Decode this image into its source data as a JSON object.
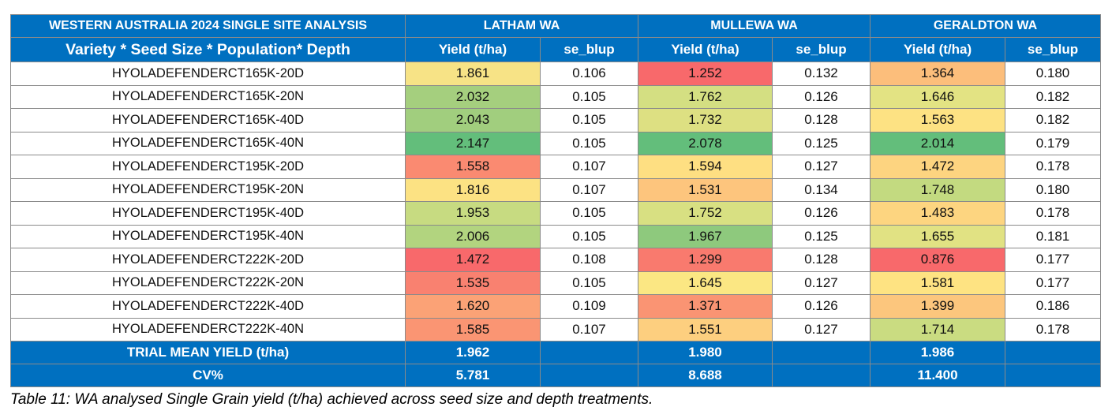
{
  "table": {
    "title": "WESTERN AUSTRALIA 2024 SINGLE SITE ANALYSIS",
    "subtitle": "Variety * Seed Size * Population* Depth",
    "sites": [
      "LATHAM WA",
      "MULLEWA WA",
      "GERALDTON WA"
    ],
    "col_yield": "Yield (t/ha)",
    "col_se": "se_blup",
    "rows": [
      {
        "variety": "HYOLADEFENDERCT165K-20D",
        "cells": [
          {
            "yield": "1.861",
            "se": "0.106",
            "color": "#f7e386"
          },
          {
            "yield": "1.252",
            "se": "0.132",
            "color": "#f8696b"
          },
          {
            "yield": "1.364",
            "se": "0.180",
            "color": "#fcbe7b"
          }
        ]
      },
      {
        "variety": "HYOLADEFENDERCT165K-20N",
        "cells": [
          {
            "yield": "2.032",
            "se": "0.105",
            "color": "#a5cf7e"
          },
          {
            "yield": "1.762",
            "se": "0.126",
            "color": "#d4df82"
          },
          {
            "yield": "1.646",
            "se": "0.182",
            "color": "#e3e383"
          }
        ]
      },
      {
        "variety": "HYOLADEFENDERCT165K-40D",
        "cells": [
          {
            "yield": "2.043",
            "se": "0.105",
            "color": "#a1ce7e"
          },
          {
            "yield": "1.732",
            "se": "0.128",
            "color": "#dde082"
          },
          {
            "yield": "1.563",
            "se": "0.182",
            "color": "#fde283"
          }
        ]
      },
      {
        "variety": "HYOLADEFENDERCT165K-40N",
        "cells": [
          {
            "yield": "2.147",
            "se": "0.105",
            "color": "#63be7b"
          },
          {
            "yield": "2.078",
            "se": "0.125",
            "color": "#63be7b"
          },
          {
            "yield": "2.014",
            "se": "0.179",
            "color": "#63be7b"
          }
        ]
      },
      {
        "variety": "HYOLADEFENDERCT195K-20D",
        "cells": [
          {
            "yield": "1.558",
            "se": "0.107",
            "color": "#fa8a71"
          },
          {
            "yield": "1.594",
            "se": "0.127",
            "color": "#fedf82"
          },
          {
            "yield": "1.472",
            "se": "0.178",
            "color": "#fdd480"
          }
        ]
      },
      {
        "variety": "HYOLADEFENDERCT195K-20N",
        "cells": [
          {
            "yield": "1.816",
            "se": "0.107",
            "color": "#fce283"
          },
          {
            "yield": "1.531",
            "se": "0.134",
            "color": "#fdc57d"
          },
          {
            "yield": "1.748",
            "se": "0.180",
            "color": "#c3da80"
          }
        ]
      },
      {
        "variety": "HYOLADEFENDERCT195K-40D",
        "cells": [
          {
            "yield": "1.953",
            "se": "0.105",
            "color": "#c7db81"
          },
          {
            "yield": "1.752",
            "se": "0.126",
            "color": "#d8e082"
          },
          {
            "yield": "1.483",
            "se": "0.178",
            "color": "#fdd580"
          }
        ]
      },
      {
        "variety": "HYOLADEFENDERCT195K-40N",
        "cells": [
          {
            "yield": "2.006",
            "se": "0.105",
            "color": "#b2d47f"
          },
          {
            "yield": "1.967",
            "se": "0.125",
            "color": "#8ec97d"
          },
          {
            "yield": "1.655",
            "se": "0.181",
            "color": "#e1e283"
          }
        ]
      },
      {
        "variety": "HYOLADEFENDERCT222K-20D",
        "cells": [
          {
            "yield": "1.472",
            "se": "0.108",
            "color": "#f8696b"
          },
          {
            "yield": "1.299",
            "se": "0.128",
            "color": "#f97a6e"
          },
          {
            "yield": "0.876",
            "se": "0.177",
            "color": "#f8696b"
          }
        ]
      },
      {
        "variety": "HYOLADEFENDERCT222K-20N",
        "cells": [
          {
            "yield": "1.535",
            "se": "0.105",
            "color": "#f98170"
          },
          {
            "yield": "1.645",
            "se": "0.127",
            "color": "#fbe783"
          },
          {
            "yield": "1.581",
            "se": "0.177",
            "color": "#fee382"
          }
        ]
      },
      {
        "variety": "HYOLADEFENDERCT222K-40D",
        "cells": [
          {
            "yield": "1.620",
            "se": "0.109",
            "color": "#fba276"
          },
          {
            "yield": "1.371",
            "se": "0.126",
            "color": "#fa9473"
          },
          {
            "yield": "1.399",
            "se": "0.186",
            "color": "#fcc67d"
          }
        ]
      },
      {
        "variety": "HYOLADEFENDERCT222K-40N",
        "cells": [
          {
            "yield": "1.585",
            "se": "0.107",
            "color": "#fa9573"
          },
          {
            "yield": "1.551",
            "se": "0.127",
            "color": "#fdcf7f"
          },
          {
            "yield": "1.714",
            "se": "0.178",
            "color": "#cadc81"
          }
        ]
      }
    ],
    "footer": [
      {
        "label": "TRIAL MEAN YIELD (t/ha)",
        "values": [
          "1.962",
          "1.980",
          "1.986"
        ]
      },
      {
        "label": "CV%",
        "values": [
          "5.781",
          "8.688",
          "11.400"
        ]
      }
    ]
  },
  "caption": "Table 11: WA analysed Single Grain yield (t/ha) achieved across seed size and depth treatments."
}
